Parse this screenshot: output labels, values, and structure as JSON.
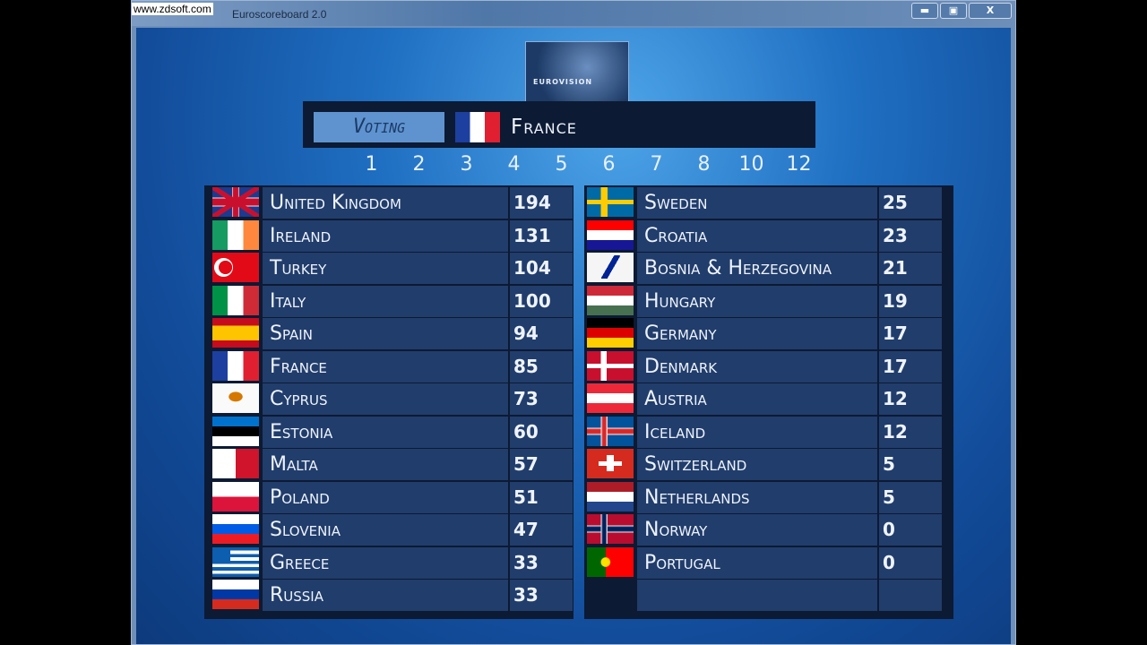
{
  "watermark": "www.zdsoft.com",
  "window": {
    "title": "Euroscoreboard 2.0",
    "minimize": "▬",
    "maximize": "▣",
    "close": "X"
  },
  "logo": {
    "text": "EUROVISION"
  },
  "header": {
    "voting_label": "Voting",
    "voting_country": "France",
    "voting_flag": "flag-fr"
  },
  "points": [
    "1",
    "2",
    "3",
    "4",
    "5",
    "6",
    "7",
    "8",
    "10",
    "12"
  ],
  "left": [
    {
      "name": "United Kingdom",
      "score": "194",
      "flag": "flag-gb"
    },
    {
      "name": "Ireland",
      "score": "131",
      "flag": "flag-ie"
    },
    {
      "name": "Turkey",
      "score": "104",
      "flag": "flag-tr"
    },
    {
      "name": "Italy",
      "score": "100",
      "flag": "flag-it"
    },
    {
      "name": "Spain",
      "score": "94",
      "flag": "flag-es"
    },
    {
      "name": "France",
      "score": "85",
      "flag": "flag-fr"
    },
    {
      "name": "Cyprus",
      "score": "73",
      "flag": "flag-cy"
    },
    {
      "name": "Estonia",
      "score": "60",
      "flag": "flag-ee"
    },
    {
      "name": "Malta",
      "score": "57",
      "flag": "flag-mt"
    },
    {
      "name": "Poland",
      "score": "51",
      "flag": "flag-pl"
    },
    {
      "name": "Slovenia",
      "score": "47",
      "flag": "flag-si"
    },
    {
      "name": "Greece",
      "score": "33",
      "flag": "flag-gr"
    },
    {
      "name": "Russia",
      "score": "33",
      "flag": "flag-ru"
    }
  ],
  "right": [
    {
      "name": "Sweden",
      "score": "25",
      "flag": "flag-se"
    },
    {
      "name": "Croatia",
      "score": "23",
      "flag": "flag-hr"
    },
    {
      "name": "Bosnia & Herzegovina",
      "score": "21",
      "flag": "flag-ba"
    },
    {
      "name": "Hungary",
      "score": "19",
      "flag": "flag-hu"
    },
    {
      "name": "Germany",
      "score": "17",
      "flag": "flag-de"
    },
    {
      "name": "Denmark",
      "score": "17",
      "flag": "flag-dk"
    },
    {
      "name": "Austria",
      "score": "12",
      "flag": "flag-at"
    },
    {
      "name": "Iceland",
      "score": "12",
      "flag": "flag-is"
    },
    {
      "name": "Switzerland",
      "score": "5",
      "flag": "flag-ch"
    },
    {
      "name": "Netherlands",
      "score": "5",
      "flag": "flag-nl"
    },
    {
      "name": "Norway",
      "score": "0",
      "flag": "flag-no"
    },
    {
      "name": "Portugal",
      "score": "0",
      "flag": "flag-pt"
    },
    {
      "name": "",
      "score": "",
      "flag": ""
    }
  ]
}
